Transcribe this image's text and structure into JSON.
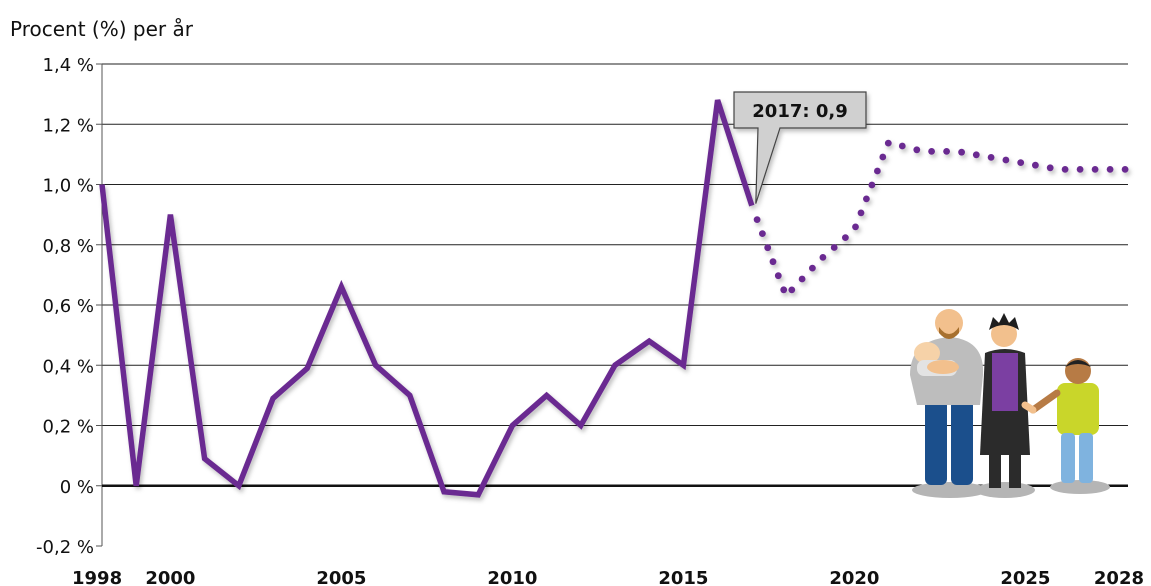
{
  "chart_data": {
    "type": "line",
    "ylabel": "Procent (%) per år",
    "xlabel": "",
    "xlim": [
      1998,
      2028
    ],
    "ylim": [
      -0.2,
      1.4
    ],
    "yticks": [
      {
        "value": 1.4,
        "label": "1,4 %"
      },
      {
        "value": 1.2,
        "label": "1,2 %"
      },
      {
        "value": 1.0,
        "label": "1,0 %"
      },
      {
        "value": 0.8,
        "label": "0,8 %"
      },
      {
        "value": 0.6,
        "label": "0,6 %"
      },
      {
        "value": 0.4,
        "label": "0,4 %"
      },
      {
        "value": 0.2,
        "label": "0,2 %"
      },
      {
        "value": 0.0,
        "label": "0 %"
      },
      {
        "value": -0.2,
        "label": "-0,2 %"
      }
    ],
    "xticks": [
      {
        "value": 1998,
        "label": "1998"
      },
      {
        "value": 2000,
        "label": "2000"
      },
      {
        "value": 2005,
        "label": "2005"
      },
      {
        "value": 2010,
        "label": "2010"
      },
      {
        "value": 2015,
        "label": "2015"
      },
      {
        "value": 2020,
        "label": "2020"
      },
      {
        "value": 2025,
        "label": "2025"
      },
      {
        "value": 2028,
        "label": "2028"
      }
    ],
    "grid": true,
    "series": [
      {
        "style": "solid",
        "color": "#6b2c91",
        "x": [
          1998,
          1999,
          2000,
          2001,
          2002,
          2003,
          2004,
          2005,
          2006,
          2007,
          2008,
          2009,
          2010,
          2011,
          2012,
          2013,
          2014,
          2015,
          2016,
          2017
        ],
        "values": [
          1.0,
          0.0,
          0.9,
          0.09,
          0.0,
          0.29,
          0.39,
          0.66,
          0.4,
          0.3,
          -0.02,
          -0.03,
          0.2,
          0.3,
          0.2,
          0.4,
          0.48,
          0.4,
          1.28,
          0.93
        ]
      },
      {
        "style": "dotted",
        "color": "#6b2c91",
        "x": [
          2017,
          2018,
          2019,
          2020,
          2021,
          2022,
          2023,
          2024,
          2025,
          2026,
          2027,
          2028
        ],
        "values": [
          0.93,
          0.63,
          0.75,
          0.85,
          1.14,
          1.11,
          1.11,
          1.09,
          1.07,
          1.05,
          1.05,
          1.05
        ]
      }
    ],
    "annotation": {
      "text": "2017: 0,9",
      "x": 2017,
      "y": 0.93
    }
  },
  "colors": {
    "line": "#6b2c91",
    "grid": "#222222",
    "annotation_fill": "#d0d0d0",
    "annotation_stroke": "#444444"
  },
  "illustration": {
    "description_icon": "family-icon"
  }
}
